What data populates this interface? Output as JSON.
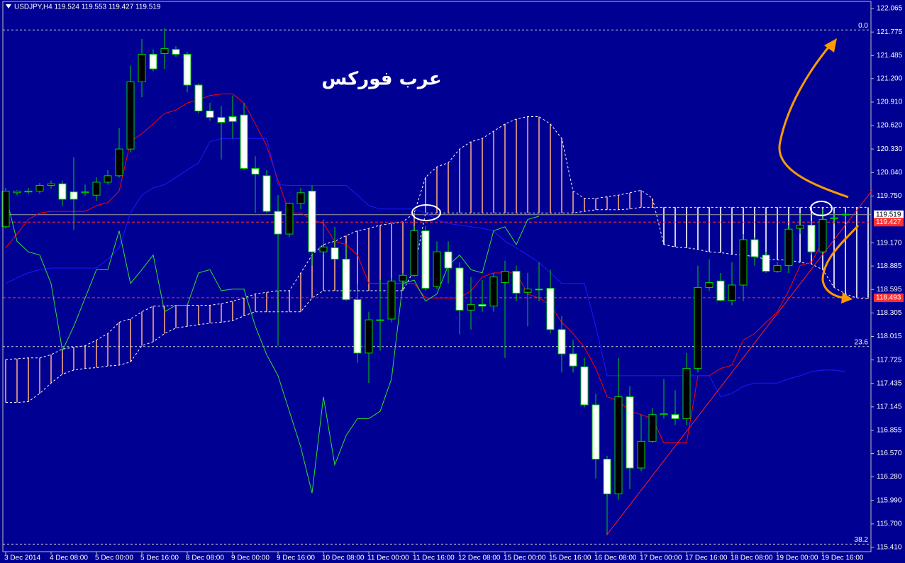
{
  "chart_data": {
    "type": "candlestick",
    "title": "USDJPY,H4 119.524 119.553 119.427 119.519",
    "annotation": "عرب فوركس",
    "categories": [
      "3 Dec 2014",
      null,
      null,
      null,
      "4 Dec 08:00",
      null,
      null,
      null,
      "5 Dec 00:00",
      null,
      null,
      null,
      "5 Dec 16:00",
      null,
      null,
      null,
      "8 Dec 08:00",
      null,
      null,
      null,
      "9 Dec 00:00",
      null,
      null,
      null,
      "9 Dec 16:00",
      null,
      null,
      null,
      "10 Dec 08:00",
      null,
      null,
      null,
      "11 Dec 00:00",
      null,
      null,
      null,
      "11 Dec 16:00",
      null,
      null,
      null,
      "12 Dec 08:00",
      null,
      null,
      null,
      "15 Dec 00:00",
      null,
      null,
      null,
      "15 Dec 16:00",
      null,
      null,
      null,
      "16 Dec 08:00",
      null,
      null,
      null,
      "17 Dec 00:00",
      null,
      null,
      null,
      "17 Dec 16:00",
      null,
      null,
      null,
      "18 Dec 08:00",
      null,
      null,
      null,
      "19 Dec 00:00",
      null,
      null,
      null,
      "19 Dec 16:00",
      null,
      null,
      null,
      null
    ],
    "open": [
      119.37,
      119.79,
      119.8,
      119.81,
      119.88,
      119.9,
      119.8,
      119.79,
      119.76,
      119.92,
      120.0,
      120.33,
      121.16,
      121.5,
      121.51,
      121.56,
      121.5,
      121.12,
      120.8,
      120.72,
      120.73,
      120.75,
      120.09,
      120.0,
      119.56,
      119.28,
      119.66,
      119.81,
      119.06,
      119.11,
      118.97,
      118.47,
      117.81,
      118.21,
      118.23,
      118.7,
      118.77,
      119.32,
      118.63,
      119.06,
      118.86,
      118.34,
      118.41,
      118.39,
      118.68,
      118.82,
      118.56,
      118.6,
      118.61,
      118.1,
      117.8,
      117.64,
      117.17,
      116.5,
      116.07,
      117.27,
      116.39,
      116.72,
      117.05,
      117.05,
      117.0,
      117.62,
      118.62,
      118.7,
      118.46,
      118.65,
      119.21,
      119.02,
      118.82,
      118.89,
      119.35,
      119.39,
      119.06,
      119.47,
      119.524,
      null,
      null
    ],
    "high": [
      119.85,
      119.82,
      119.85,
      119.91,
      119.94,
      119.94,
      120.23,
      119.89,
      119.98,
      120.07,
      120.59,
      121.36,
      121.69,
      121.56,
      121.82,
      121.6,
      121.53,
      121.14,
      120.9,
      120.86,
      120.99,
      120.9,
      120.24,
      120.07,
      119.76,
      119.67,
      119.85,
      119.88,
      119.46,
      119.37,
      119.15,
      118.67,
      118.32,
      118.71,
      118.74,
      118.8,
      119.38,
      119.38,
      119.19,
      119.19,
      118.93,
      118.75,
      118.71,
      118.8,
      118.95,
      118.89,
      118.8,
      118.93,
      118.84,
      118.27,
      117.97,
      117.75,
      117.31,
      116.54,
      117.75,
      117.4,
      117.05,
      117.13,
      117.49,
      117.35,
      117.81,
      118.89,
      118.97,
      118.8,
      118.93,
      119.28,
      119.24,
      119.06,
      118.93,
      119.39,
      119.54,
      119.44,
      119.59,
      119.54,
      119.553,
      null,
      null
    ],
    "low": [
      119.35,
      119.76,
      119.77,
      119.78,
      119.84,
      119.63,
      119.33,
      119.75,
      119.69,
      119.89,
      119.98,
      120.29,
      120.97,
      121.29,
      121.32,
      121.47,
      121.03,
      120.77,
      120.68,
      120.2,
      120.46,
      120.07,
      119.54,
      119.54,
      117.9,
      119.24,
      119.59,
      118.89,
      119.03,
      118.97,
      118.45,
      117.69,
      117.44,
      117.84,
      118.19,
      118.67,
      118.75,
      118.58,
      118.6,
      118.67,
      118.04,
      118.1,
      118.32,
      118.32,
      117.75,
      118.45,
      118.14,
      118.45,
      118.05,
      117.57,
      117.57,
      117.14,
      116.26,
      115.56,
      116.0,
      116.13,
      116.35,
      116.7,
      117.0,
      116.92,
      116.92,
      117.57,
      118.58,
      118.45,
      118.4,
      118.45,
      118.89,
      118.8,
      118.8,
      118.8,
      119.28,
      119.02,
      119.02,
      119.41,
      119.427,
      null,
      null
    ],
    "close": [
      119.81,
      119.81,
      119.81,
      119.88,
      119.9,
      119.71,
      119.71,
      119.8,
      119.92,
      120.0,
      120.33,
      121.16,
      121.5,
      121.32,
      121.57,
      121.5,
      121.12,
      120.8,
      120.72,
      120.66,
      120.67,
      120.09,
      120.02,
      119.56,
      119.28,
      119.66,
      119.79,
      119.06,
      119.12,
      118.97,
      118.47,
      117.81,
      118.22,
      118.22,
      118.7,
      118.77,
      119.32,
      118.61,
      119.06,
      118.86,
      118.34,
      118.41,
      118.39,
      118.75,
      118.82,
      118.55,
      118.6,
      118.59,
      118.1,
      117.8,
      117.65,
      117.17,
      116.5,
      116.07,
      117.27,
      116.39,
      116.72,
      117.05,
      117.06,
      117.0,
      117.62,
      118.62,
      118.68,
      118.46,
      118.65,
      119.21,
      119.0,
      118.82,
      118.89,
      119.34,
      119.39,
      119.06,
      119.46,
      119.48,
      119.519,
      null,
      null
    ],
    "bull_color": "#000000",
    "bear_color": "#ffffff",
    "wick_color": "#00d000",
    "lines": [
      {
        "color": "#ff0000",
        "values": [
          119.11,
          119.28,
          119.46,
          119.54,
          119.56,
          119.56,
          119.56,
          119.56,
          119.63,
          119.67,
          119.81,
          120.42,
          120.52,
          120.64,
          120.77,
          120.81,
          120.9,
          120.94,
          120.99,
          121.01,
          121.01,
          120.9,
          120.64,
          120.37,
          119.94,
          119.54,
          119.54,
          119.46,
          119.41,
          119.19,
          119.15,
          119.02,
          118.67,
          118.67,
          118.67,
          118.67,
          118.67,
          118.49,
          118.49,
          118.49,
          118.49,
          118.58,
          118.75,
          118.8,
          118.8,
          118.8,
          118.54,
          118.49,
          118.4,
          118.19,
          118.05,
          117.88,
          117.62,
          117.27,
          117.22,
          117.09,
          117.05,
          117.0,
          116.7,
          116.7,
          116.7,
          117.53,
          117.53,
          117.62,
          117.66,
          117.97,
          118.05,
          118.19,
          118.32,
          118.58,
          118.89,
          118.93,
          119.19,
          null,
          null,
          null,
          null
        ]
      },
      {
        "color": "#1a1aff",
        "values": [
          118.67,
          118.74,
          118.8,
          118.84,
          118.86,
          118.86,
          118.86,
          118.86,
          118.86,
          118.97,
          119.11,
          119.54,
          119.76,
          119.85,
          119.89,
          119.98,
          120.07,
          120.16,
          120.42,
          120.46,
          120.46,
          120.46,
          120.46,
          120.46,
          119.89,
          119.88,
          119.88,
          119.88,
          119.88,
          119.88,
          119.88,
          119.76,
          119.63,
          119.59,
          119.59,
          119.59,
          119.59,
          119.54,
          119.46,
          119.41,
          119.39,
          119.37,
          119.35,
          119.32,
          119.19,
          119.11,
          119.02,
          118.93,
          118.8,
          118.67,
          118.67,
          118.67,
          118.14,
          117.53,
          117.53,
          117.53,
          117.53,
          117.53,
          117.53,
          117.53,
          117.53,
          117.53,
          117.53,
          117.27,
          117.31,
          117.4,
          117.44,
          117.44,
          117.44,
          117.49,
          117.53,
          117.58,
          117.6,
          117.6,
          117.58,
          null,
          null
        ]
      },
      {
        "color": "#33dd33",
        "values": [
          119.76,
          119.19,
          119.06,
          119.02,
          118.67,
          117.84,
          118.14,
          118.49,
          118.84,
          118.84,
          119.32,
          118.67,
          118.84,
          119.02,
          118.32,
          118.4,
          118.4,
          118.8,
          118.84,
          118.58,
          118.6,
          118.6,
          118.14,
          117.79,
          117.53,
          117.09,
          116.65,
          116.08,
          117.27,
          116.43,
          116.79,
          117.0,
          117.0,
          117.09,
          117.49,
          118.67,
          118.71,
          118.45,
          118.54,
          118.89,
          119.02,
          118.84,
          118.8,
          119.32,
          119.37,
          119.15,
          119.46,
          119.5,
          null,
          null,
          null,
          null,
          null,
          null,
          null,
          null,
          null,
          null,
          null,
          null,
          null,
          null,
          null,
          null,
          null,
          null,
          null,
          null,
          null,
          null,
          null,
          null,
          null,
          null,
          null,
          null,
          null
        ]
      }
    ],
    "cloud": {
      "up_color": "#f4a582",
      "down_color": "#ffffff",
      "edge_color": "#ffffff",
      "span_a": [
        117.73,
        117.74,
        117.75,
        117.75,
        117.79,
        117.86,
        117.88,
        117.9,
        117.97,
        118.05,
        118.19,
        118.23,
        118.32,
        118.39,
        118.39,
        118.4,
        118.4,
        118.4,
        118.4,
        118.42,
        118.45,
        118.49,
        118.54,
        118.56,
        118.58,
        118.58,
        118.8,
        119.02,
        119.15,
        119.19,
        119.26,
        119.32,
        119.35,
        119.39,
        119.41,
        119.43,
        119.54,
        119.98,
        120.11,
        120.16,
        120.33,
        120.42,
        120.46,
        120.55,
        120.64,
        120.7,
        120.73,
        120.73,
        120.64,
        120.46,
        119.81,
        119.72,
        119.72,
        119.74,
        119.76,
        119.79,
        119.82,
        119.72,
        119.15,
        119.12,
        119.11,
        119.09,
        119.06,
        119.05,
        119.03,
        119.02,
        119.0,
        118.97,
        118.96,
        118.96,
        118.93,
        118.91,
        118.84,
        118.62,
        118.54,
        118.49,
        118.48
      ],
      "span_b": [
        117.2,
        117.2,
        117.21,
        117.31,
        117.44,
        117.55,
        117.6,
        117.62,
        117.63,
        117.65,
        117.66,
        117.7,
        117.9,
        117.95,
        118.05,
        118.12,
        118.14,
        118.16,
        118.18,
        118.19,
        118.21,
        118.27,
        118.32,
        118.32,
        118.32,
        118.32,
        118.32,
        118.49,
        118.58,
        118.58,
        118.58,
        118.58,
        118.58,
        118.58,
        118.58,
        118.58,
        118.84,
        119.54,
        119.54,
        119.54,
        119.54,
        119.54,
        119.54,
        119.54,
        119.54,
        119.54,
        119.54,
        119.54,
        119.54,
        119.54,
        119.54,
        119.56,
        119.58,
        119.58,
        119.58,
        119.59,
        119.61,
        119.61,
        119.61,
        119.61,
        119.61,
        119.61,
        119.61,
        119.61,
        119.61,
        119.61,
        119.61,
        119.61,
        119.61,
        119.61,
        119.61,
        119.61,
        119.61,
        119.61,
        119.61,
        119.61,
        119.61
      ]
    },
    "levels": [
      {
        "label": "0.0",
        "price": 121.8
      },
      {
        "label": "23.6",
        "price": 117.89
      },
      {
        "label": "38.2",
        "price": 115.45
      }
    ],
    "price_lines": [
      {
        "value": 119.519,
        "line_color": "#a0a0a0",
        "box_color": "#ffffff",
        "text_color": "#000000",
        "dashed": false
      },
      {
        "value": 119.427,
        "line_color": "#ff3030",
        "box_color": "#ff3030",
        "text_color": "#ffffff",
        "dashed": true
      },
      {
        "value": 118.493,
        "line_color": "#ff3030",
        "box_color": "#ff3030",
        "text_color": "#ffffff",
        "dashed": true
      }
    ],
    "ylim": [
      115.357,
      122.153
    ],
    "yticks": [
      122.065,
      121.775,
      121.485,
      {
        "value": 121.2,
        "label": "121.200"
      },
      {
        "value": 120.91,
        "label": "120.910"
      },
      {
        "value": 120.62,
        "label": "120.620"
      },
      {
        "value": 120.33,
        "label": "120.330"
      },
      {
        "value": 120.04,
        "label": "120.040"
      },
      {
        "value": 119.75,
        "label": "119.750"
      },
      {
        "value": 119.17,
        "label": "119.170"
      },
      118.885,
      118.595,
      118.305,
      118.015,
      117.725,
      117.435,
      117.145,
      116.855,
      {
        "value": 116.57,
        "label": "116.570"
      },
      {
        "value": 116.28,
        "label": "116.280"
      },
      {
        "value": 115.99,
        "label": "115.990"
      },
      {
        "value": 115.7,
        "label": "115.700"
      },
      {
        "value": 115.41,
        "label": "115.410"
      }
    ],
    "background": "#000092"
  }
}
